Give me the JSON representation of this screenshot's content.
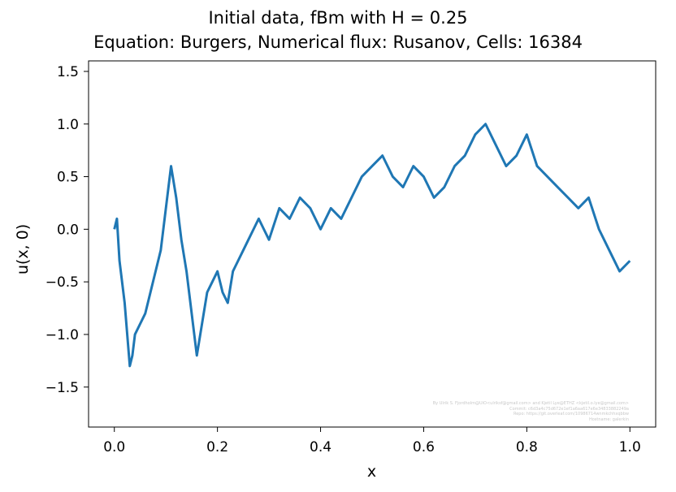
{
  "title_line1": "Initial data, fBm with H = 0.25",
  "title_line2": "Equation: Burgers, Numerical flux: Rusanov, Cells: 16384",
  "xlabel": "x",
  "ylabel": "u(x, 0)",
  "watermark": [
    "By Ulrik S. Fjordholm@UiO<ulriksf@gmail.com> and Kjetil Lye@ETHZ <kjetil.o.lye@gmail.com>",
    "Commit: c6d3a4c75d672e1ef1a6aa617e6e34833882249a",
    "Repo: https://git.overleaf.com/10986714wnmkchhxqbbw",
    "Hostname: galerkin"
  ],
  "chart_data": {
    "type": "line",
    "title": "Initial data, fBm with H = 0.25",
    "subtitle": "Equation: Burgers, Numerical flux: Rusanov, Cells: 16384",
    "xlabel": "x",
    "ylabel": "u(x, 0)",
    "xlim": [
      -0.05,
      1.05
    ],
    "ylim": [
      -1.88,
      1.6
    ],
    "xticks": [
      0.0,
      0.2,
      0.4,
      0.6,
      0.8,
      1.0
    ],
    "xtick_labels": [
      "0.0",
      "0.2",
      "0.4",
      "0.6",
      "0.8",
      "1.0"
    ],
    "yticks": [
      -1.5,
      -1.0,
      -0.5,
      0.0,
      0.5,
      1.0,
      1.5
    ],
    "ytick_labels": [
      "−1.5",
      "−1.0",
      "−0.5",
      "0.0",
      "0.5",
      "1.0",
      "1.5"
    ],
    "grid": false,
    "line_color": "#1f77b4",
    "series": [
      {
        "x": [
          0.0,
          0.005,
          0.01,
          0.015,
          0.02,
          0.025,
          0.03,
          0.035,
          0.04,
          0.05,
          0.06,
          0.07,
          0.08,
          0.09,
          0.1,
          0.11,
          0.12,
          0.13,
          0.14,
          0.15,
          0.16,
          0.17,
          0.18,
          0.19,
          0.2,
          0.21,
          0.22,
          0.23,
          0.24,
          0.25,
          0.26,
          0.27,
          0.28,
          0.29,
          0.3,
          0.32,
          0.34,
          0.36,
          0.38,
          0.4,
          0.42,
          0.44,
          0.46,
          0.48,
          0.5,
          0.52,
          0.54,
          0.56,
          0.58,
          0.6,
          0.62,
          0.64,
          0.66,
          0.68,
          0.7,
          0.72,
          0.74,
          0.76,
          0.78,
          0.8,
          0.82,
          0.84,
          0.86,
          0.88,
          0.9,
          0.92,
          0.94,
          0.96,
          0.98,
          1.0
        ],
        "y": [
          0.0,
          0.1,
          -0.3,
          -0.5,
          -0.7,
          -1.0,
          -1.3,
          -1.2,
          -1.0,
          -0.9,
          -0.8,
          -0.6,
          -0.4,
          -0.2,
          0.2,
          0.6,
          0.3,
          -0.1,
          -0.4,
          -0.8,
          -1.2,
          -0.9,
          -0.6,
          -0.5,
          -0.4,
          -0.6,
          -0.7,
          -0.4,
          -0.3,
          -0.2,
          -0.1,
          0.0,
          0.1,
          0.0,
          -0.1,
          0.2,
          0.1,
          0.3,
          0.2,
          0.0,
          0.2,
          0.1,
          0.3,
          0.5,
          0.6,
          0.7,
          0.5,
          0.4,
          0.6,
          0.5,
          0.3,
          0.4,
          0.6,
          0.7,
          0.9,
          1.0,
          0.8,
          0.6,
          0.7,
          0.9,
          0.6,
          0.5,
          0.4,
          0.3,
          0.2,
          0.3,
          0.0,
          -0.2,
          -0.4,
          -0.3
        ]
      }
    ]
  }
}
